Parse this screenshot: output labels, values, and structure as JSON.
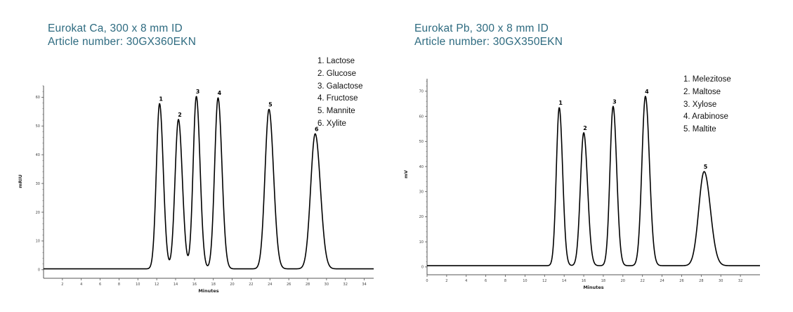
{
  "chart_data": [
    {
      "type": "line",
      "title": "Eurokat Ca, 300 x 8 mm ID",
      "subtitle": "Article number: 30GX360EKN",
      "xlabel": "Minutes",
      "ylabel": "mRIU",
      "xlim": [
        0,
        35
      ],
      "ylim": [
        -2,
        64
      ],
      "xticks": [
        2,
        4,
        6,
        8,
        10,
        12,
        14,
        16,
        18,
        20,
        22,
        24,
        26,
        28,
        30,
        32,
        34
      ],
      "yticks": [
        0,
        10,
        20,
        30,
        40,
        50,
        60
      ],
      "grid": false,
      "legend_position": "top-right",
      "legend": [
        "1. Lactose",
        "2. Glucose",
        "3. Galactose",
        "4. Fructose",
        "5. Mannite",
        "6. Xylite"
      ],
      "baseline": 0.3,
      "peaks": [
        {
          "label": "1",
          "name": "Lactose",
          "retention_time": 12.3,
          "height": 57.5,
          "width": 0.34
        },
        {
          "label": "2",
          "name": "Glucose",
          "retention_time": 14.3,
          "height": 52,
          "width": 0.36
        },
        {
          "label": "3",
          "name": "Galactose",
          "retention_time": 16.2,
          "height": 60,
          "width": 0.34
        },
        {
          "label": "4",
          "name": "Fructose",
          "retention_time": 18.5,
          "height": 59.5,
          "width": 0.36
        },
        {
          "label": "5",
          "name": "Mannite",
          "retention_time": 23.9,
          "height": 55.5,
          "width": 0.42
        },
        {
          "label": "6",
          "name": "Xylite",
          "retention_time": 28.8,
          "height": 47,
          "width": 0.48
        }
      ]
    },
    {
      "type": "line",
      "title": "Eurokat Pb, 300 x 8 mm ID",
      "subtitle": "Article number: 30GX350EKN",
      "xlabel": "Minutes",
      "ylabel": "mV",
      "xlim": [
        0,
        34
      ],
      "ylim": [
        -2,
        75
      ],
      "xticks": [
        0,
        2,
        4,
        6,
        8,
        10,
        12,
        14,
        16,
        18,
        20,
        22,
        24,
        26,
        28,
        30,
        32
      ],
      "yticks": [
        0,
        10,
        20,
        30,
        40,
        50,
        60,
        70
      ],
      "grid": false,
      "legend_position": "top-right",
      "legend": [
        "1. Melezitose",
        "2. Maltose",
        "3. Xylose",
        "4. Arabinose",
        "5. Maltite"
      ],
      "baseline": 0.5,
      "peaks": [
        {
          "label": "1",
          "name": "Melezitose",
          "retention_time": 13.5,
          "height": 63,
          "width": 0.3
        },
        {
          "label": "2",
          "name": "Maltose",
          "retention_time": 16.0,
          "height": 53,
          "width": 0.34
        },
        {
          "label": "3",
          "name": "Xylose",
          "retention_time": 19.0,
          "height": 63.5,
          "width": 0.32
        },
        {
          "label": "4",
          "name": "Arabinose",
          "retention_time": 22.3,
          "height": 67.5,
          "width": 0.36
        },
        {
          "label": "5",
          "name": "Maltite",
          "retention_time": 28.3,
          "height": 37.5,
          "width": 0.55
        }
      ]
    }
  ],
  "left": {
    "title": "Eurokat Ca, 300 x 8 mm ID",
    "subtitle": "Article number: 30GX360EKN",
    "legend": [
      "1. Lactose",
      "2. Glucose",
      "3. Galactose",
      "4. Fructose",
      "5. Mannite",
      "6. Xylite"
    ]
  },
  "right": {
    "title": "Eurokat Pb, 300 x 8 mm ID",
    "subtitle": "Article number: 30GX350EKN",
    "legend": [
      "1. Melezitose",
      "2. Maltose",
      "3. Xylose",
      "4. Arabinose",
      "5. Maltite"
    ]
  },
  "colors": {
    "title": "#2e6b80",
    "trace": "#000000",
    "axis": "#555555"
  }
}
